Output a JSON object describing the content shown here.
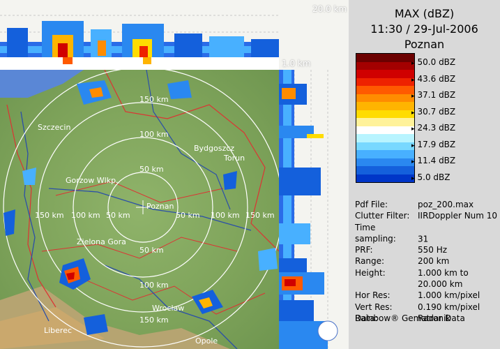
{
  "header": {
    "product": "MAX (dBZ)",
    "datetime": "11:30 / 29-Jul-2006",
    "site": "Poznan"
  },
  "corner_labels": {
    "top_height": "20.0 km",
    "bottom_height": "1.0 km"
  },
  "legend": {
    "colors": [
      "#6b0000",
      "#a30000",
      "#d00000",
      "#ee2200",
      "#ff5a00",
      "#ff8c00",
      "#ffb400",
      "#ffdc00",
      "#fff29a",
      "#ffffff",
      "#b8f4ff",
      "#78d8ff",
      "#48b0ff",
      "#2a88f0",
      "#1460dc",
      "#0036c8"
    ],
    "labels": [
      "50.0 dBZ",
      "43.6 dBZ",
      "37.1 dBZ",
      "30.7 dBZ",
      "24.3 dBZ",
      "17.9 dBZ",
      "11.4 dBZ",
      "5.0 dBZ"
    ]
  },
  "info": [
    {
      "key": "Pdf File:",
      "value": "poz_200.max"
    },
    {
      "key": "Clutter Filter:",
      "value": "IIRDoppler Num 10"
    },
    {
      "key": "Time sampling:",
      "value": "31"
    },
    {
      "key": "PRF:",
      "value": "550 Hz"
    },
    {
      "key": "Range:",
      "value": "200 km"
    },
    {
      "key": "Height:",
      "value": "1.000 km to"
    },
    {
      "key": "",
      "value": "20.000 km"
    },
    {
      "key": "Hor Res:",
      "value": "1.000 km/pixel"
    },
    {
      "key": "Vert Res:",
      "value": "0.190 km/pixel"
    },
    {
      "key": "Data:",
      "value": "Radar Data"
    }
  ],
  "vendor": "Rainbow® Gematronik",
  "map": {
    "cities": [
      "Szczecin",
      "Bydgoszcz",
      "Torun",
      "Gorzow Wlkp.",
      "Poznan",
      "Zielona Gora",
      "Wroclaw",
      "Liberec",
      "Opole"
    ],
    "ring_labels": [
      "50 km",
      "100 km",
      "150 km"
    ]
  }
}
